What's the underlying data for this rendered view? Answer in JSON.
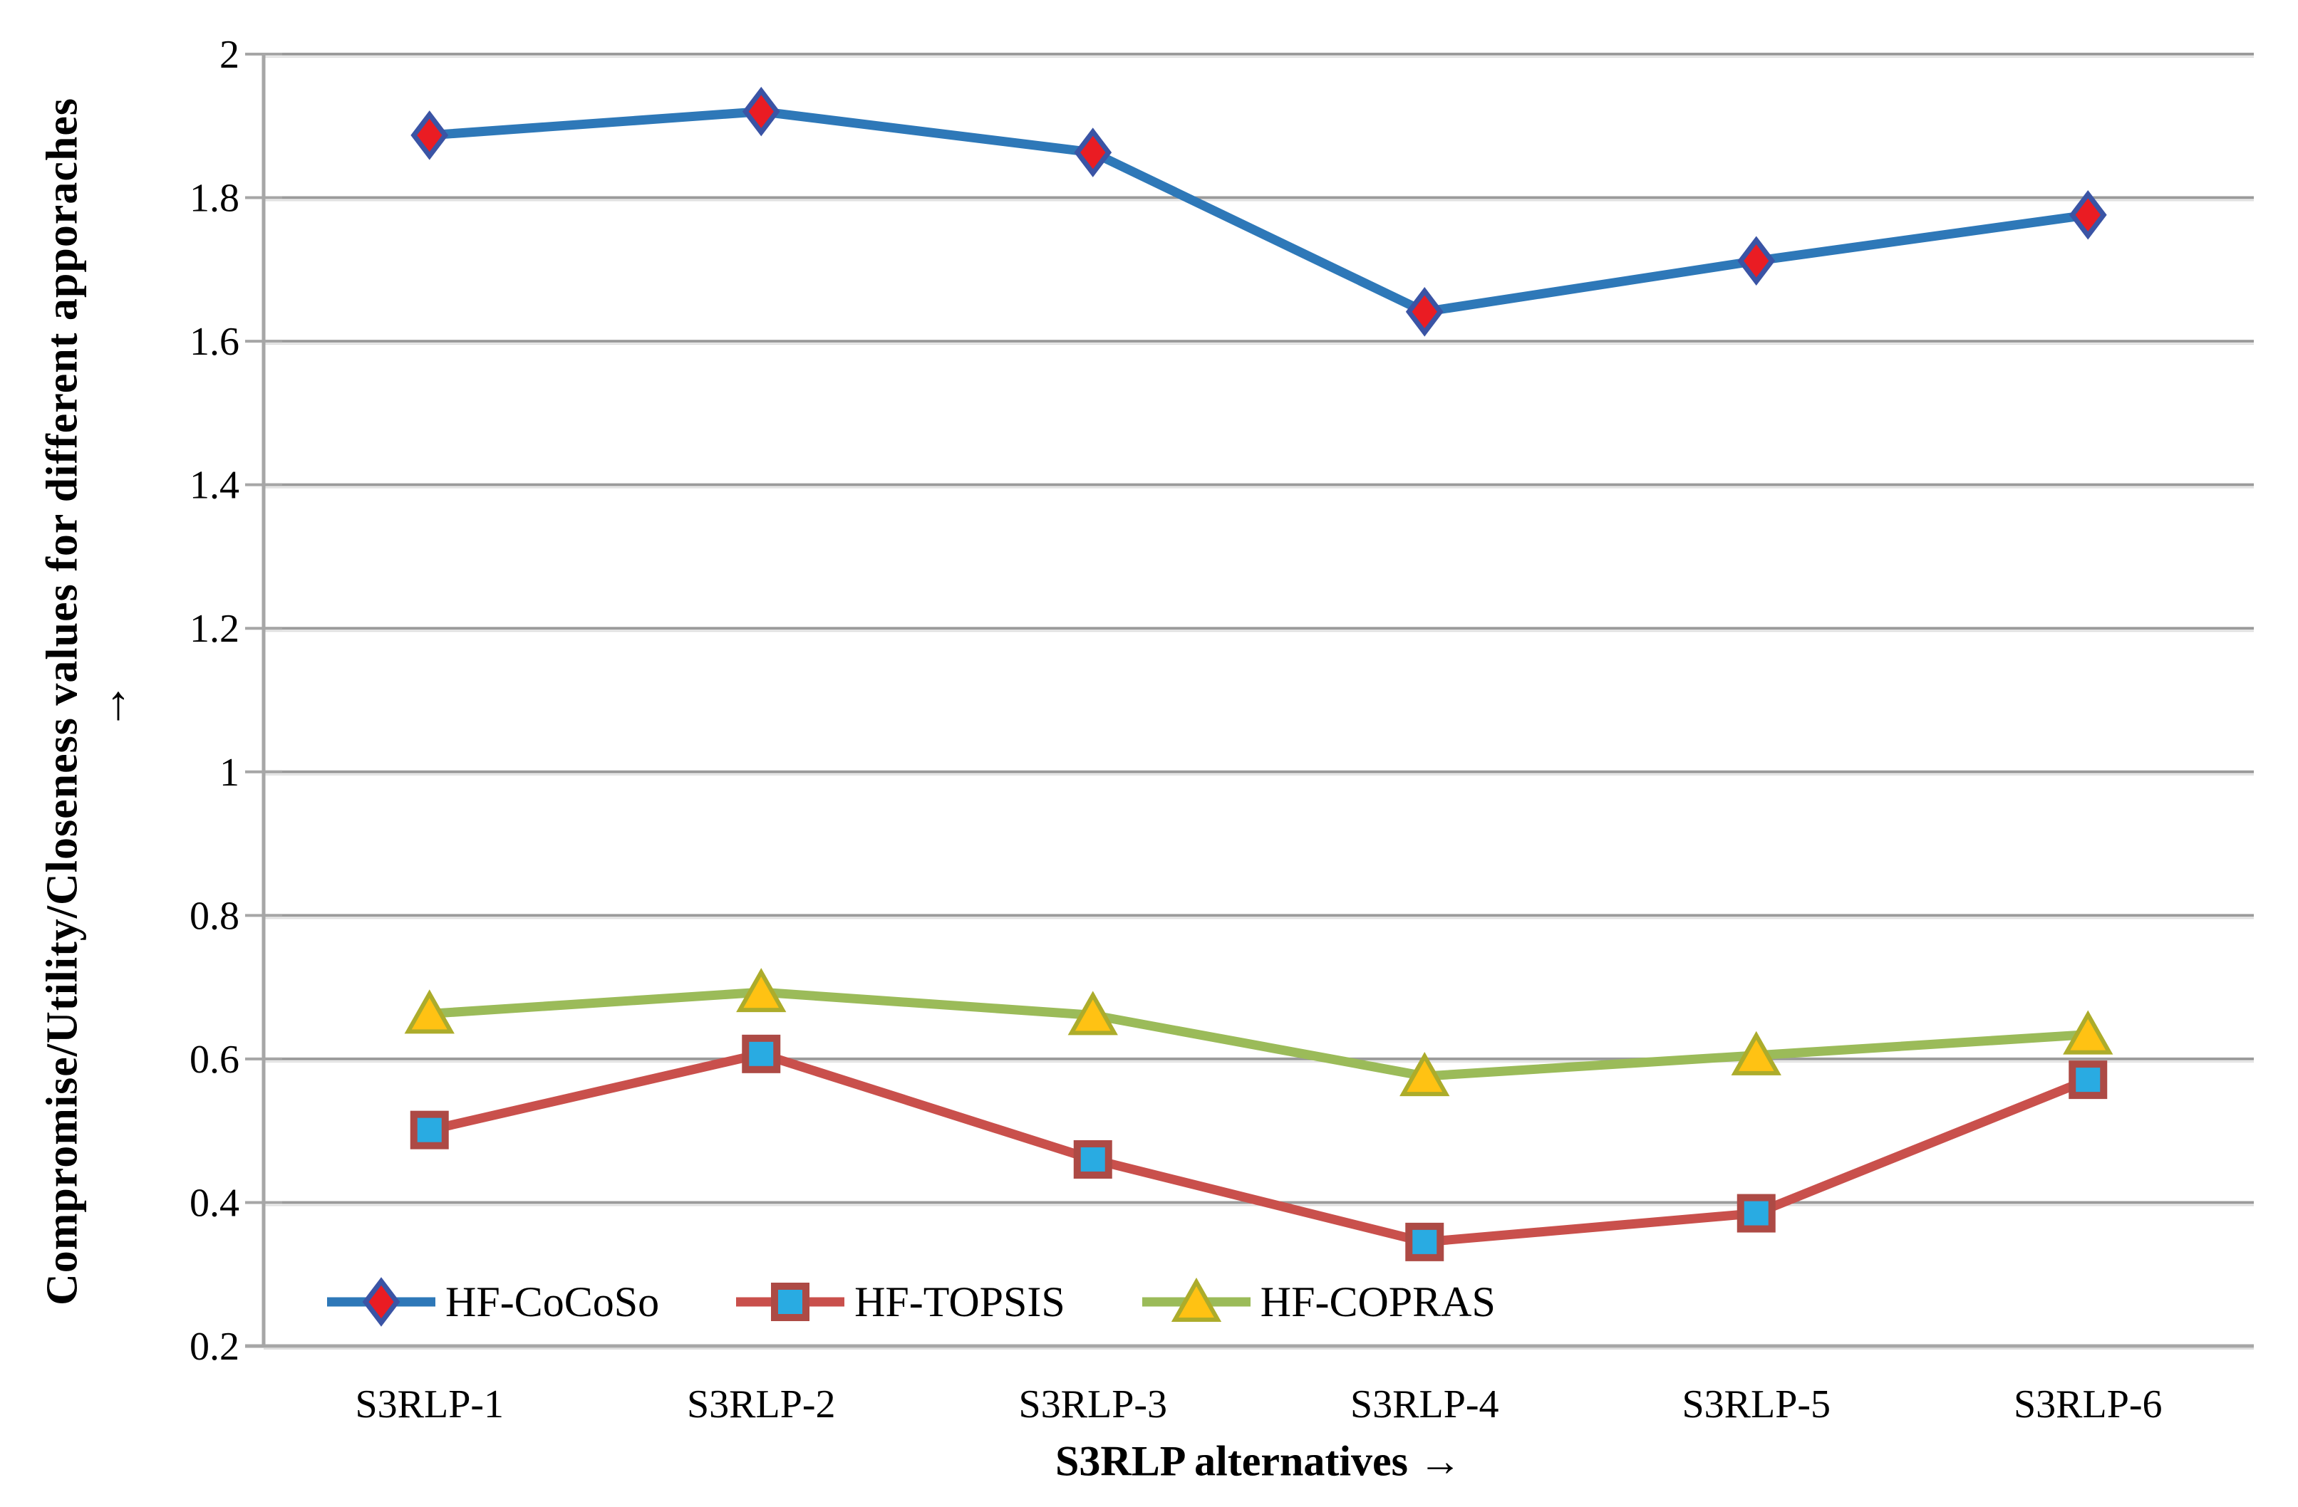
{
  "chart_data": {
    "type": "line",
    "title": "",
    "categories": [
      "S3RLP-1",
      "S3RLP-2",
      "S3RLP-3",
      "S3RLP-4",
      "S3RLP-5",
      "S3RLP-6"
    ],
    "series": [
      {
        "name": "HF-CoCoSo",
        "values": [
          1.887,
          1.92,
          1.863,
          1.641,
          1.712,
          1.776
        ],
        "line_color": "#2E78B8",
        "marker": "diamond",
        "marker_fill": "#EA1C23",
        "marker_stroke": "#3A54A5"
      },
      {
        "name": "HF-TOPSIS",
        "values": [
          0.501,
          0.607,
          0.46,
          0.345,
          0.385,
          0.571
        ],
        "line_color": "#C9504C",
        "marker": "square",
        "marker_fill": "#29ABE2",
        "marker_stroke": "#AD4A45"
      },
      {
        "name": "HF-COPRAS",
        "values": [
          0.663,
          0.693,
          0.661,
          0.576,
          0.605,
          0.634
        ],
        "line_color": "#9BBB59",
        "marker": "triangle",
        "marker_fill": "#FFC213",
        "marker_stroke": "#ACAC2B"
      }
    ],
    "xlabel": "S3RLP alternatives →",
    "ylabel": "Compromise/Utility/Closeness values for different apporaches",
    "ylabel_arrow": "↑",
    "ylim": [
      0.2,
      2.0
    ],
    "yticks": [
      2.0,
      1.8,
      1.6,
      1.4,
      1.2,
      1.0,
      0.8,
      0.6,
      0.4,
      0.2
    ],
    "ytick_labels": [
      "2",
      "1.8",
      "1.6",
      "1.4",
      "1.2",
      "1",
      "0.8",
      "0.6",
      "0.4",
      "0.2"
    ],
    "grid": true,
    "legend_position": "bottom-inside",
    "grid_color": "#9B9B9B",
    "grid_shadow_color": "#DEDEDE",
    "axis_color": "#A6A6A6",
    "text_color": "#000000"
  }
}
